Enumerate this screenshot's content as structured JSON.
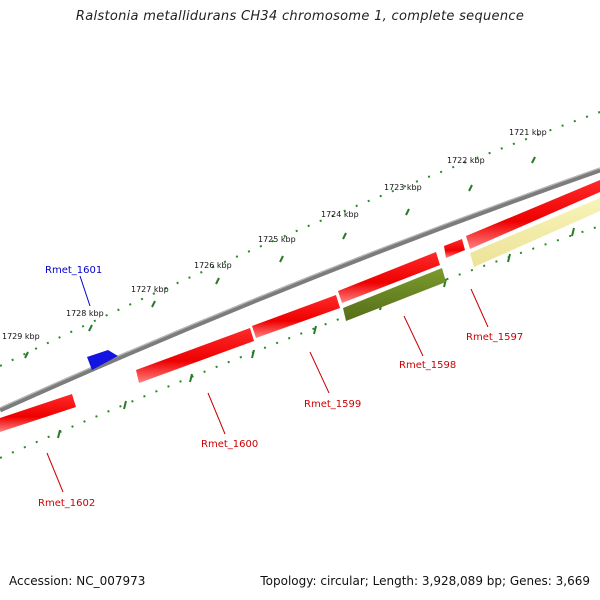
{
  "title": "Ralstonia metallidurans CH34 chromosome 1, complete sequence",
  "footer": {
    "accession": "Accession: NC_007973",
    "summary": "Topology: circular; Length: 3,928,089 bp; Genes: 3,669"
  },
  "colors": {
    "backbone": "#8a8a8a",
    "forward_gene": "#ff1a1a",
    "reverse_gene": "#ff1a1a",
    "highlight_gene_olive": "#6b8a23",
    "highlight_gene_pale": "#f3eca0",
    "blue_feature": "#1414e0",
    "tick_major": "#2a7a2a",
    "tick_minor": "#2a8a2a",
    "label_red": "#cc0000",
    "label_blue": "#0000cc"
  },
  "scale_labels": [
    "1721 kbp",
    "1722 kbp",
    "1723 kbp",
    "1724 kbp",
    "1725 kbp",
    "1726 kbp",
    "1727 kbp",
    "1728 kbp",
    "1729 kbp"
  ],
  "gene_labels": [
    {
      "name": "Rmet_1601",
      "color": "blue"
    },
    {
      "name": "Rmet_1597",
      "color": "red"
    },
    {
      "name": "Rmet_1598",
      "color": "red"
    },
    {
      "name": "Rmet_1599",
      "color": "red"
    },
    {
      "name": "Rmet_1600",
      "color": "red"
    },
    {
      "name": "Rmet_1602",
      "color": "red"
    }
  ]
}
